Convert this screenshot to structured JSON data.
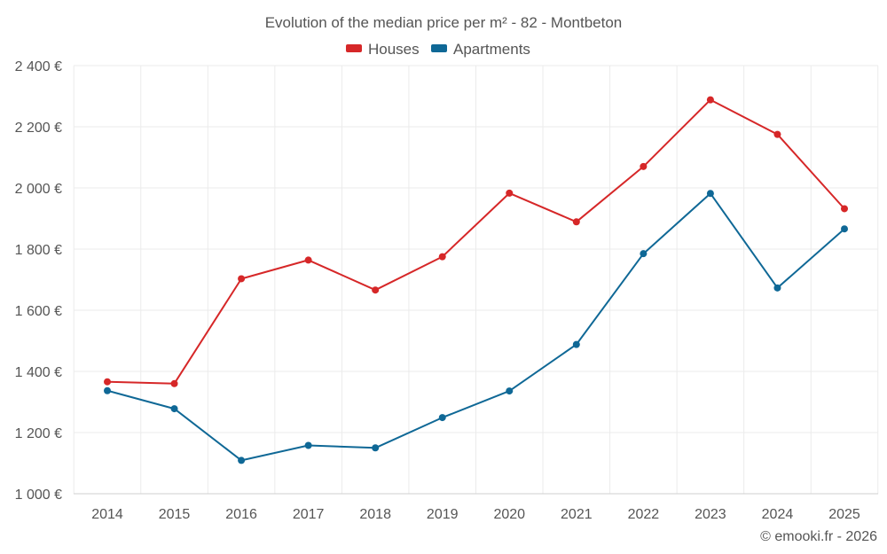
{
  "chart_data": {
    "type": "line",
    "title": "Evolution of the median price per m² - 82 - Montbeton",
    "categories": [
      "2014",
      "2015",
      "2016",
      "2017",
      "2018",
      "2019",
      "2020",
      "2021",
      "2022",
      "2023",
      "2024",
      "2025"
    ],
    "series": [
      {
        "name": "Houses",
        "color": "#d62728",
        "values": [
          1366,
          1360,
          1703,
          1764,
          1666,
          1775,
          1983,
          1889,
          2070,
          2288,
          2175,
          1932
        ]
      },
      {
        "name": "Apartments",
        "color": "#0f6896",
        "values": [
          1337,
          1278,
          1109,
          1158,
          1150,
          1249,
          1336,
          1488,
          1785,
          1982,
          1673,
          1866
        ]
      }
    ],
    "yticks": [
      "1 000 €",
      "1 200 €",
      "1 400 €",
      "1 600 €",
      "1 800 €",
      "2 000 €",
      "2 200 €",
      "2 400 €"
    ],
    "ytick_values": [
      1000,
      1200,
      1400,
      1600,
      1800,
      2000,
      2200,
      2400
    ],
    "ylim": [
      1000,
      2400
    ],
    "xlabel": "",
    "ylabel": "",
    "legend_position": "top-center",
    "grid": true
  },
  "credit": "© emooki.fr - 2026"
}
